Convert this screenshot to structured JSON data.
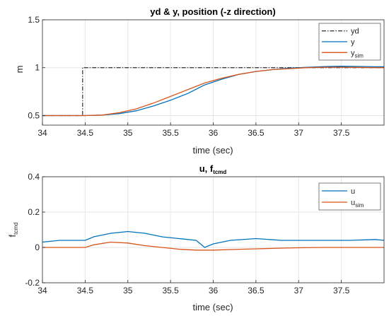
{
  "colors": {
    "yd": "#404040",
    "y": "#0072BD",
    "ysim": "#D95319",
    "u": "#0072BD",
    "usim": "#D95319",
    "grid": "#e6e6e6",
    "axis": "#262626"
  },
  "chart_data": [
    {
      "type": "line",
      "title": "yd & y, position (-z direction)",
      "xlabel": "time (sec)",
      "ylabel": "m",
      "xlim": [
        34,
        38
      ],
      "ylim": [
        0.4,
        1.5
      ],
      "xticks": [
        "34",
        "34.5",
        "35",
        "35.5",
        "36",
        "36.5",
        "37",
        "37.5"
      ],
      "yticks": [
        "0.5",
        "1",
        "1.5"
      ],
      "grid": true,
      "legend_position": "top-right",
      "series": [
        {
          "name": "yd",
          "legend": {
            "base": "yd",
            "sub": ""
          },
          "style": "dash-dot",
          "x": [
            34,
            34.47,
            34.47,
            38
          ],
          "y": [
            0.5,
            0.5,
            1.0,
            1.0
          ]
        },
        {
          "name": "y",
          "legend": {
            "base": "y",
            "sub": ""
          },
          "style": "solid",
          "x": [
            34,
            34.5,
            34.7,
            34.9,
            35.1,
            35.3,
            35.5,
            35.7,
            35.9,
            36.1,
            36.3,
            36.5,
            36.7,
            36.9,
            37.1,
            37.3,
            37.5,
            37.7,
            37.9,
            38
          ],
          "y": [
            0.5,
            0.5,
            0.505,
            0.52,
            0.55,
            0.6,
            0.66,
            0.73,
            0.82,
            0.88,
            0.93,
            0.96,
            0.98,
            0.995,
            1.005,
            1.012,
            1.015,
            1.013,
            1.01,
            1.01
          ]
        },
        {
          "name": "ysim",
          "legend": {
            "base": "y",
            "sub": "sim"
          },
          "style": "solid",
          "x": [
            34,
            34.5,
            34.7,
            34.9,
            35.1,
            35.3,
            35.5,
            35.7,
            35.9,
            36.1,
            36.3,
            36.5,
            36.7,
            36.9,
            37.1,
            37.3,
            37.5,
            37.7,
            37.9,
            38
          ],
          "y": [
            0.5,
            0.5,
            0.505,
            0.53,
            0.57,
            0.63,
            0.7,
            0.77,
            0.84,
            0.89,
            0.93,
            0.96,
            0.98,
            0.99,
            1.0,
            1.005,
            1.005,
            1.003,
            1.0,
            1.0
          ]
        }
      ]
    },
    {
      "type": "line",
      "title_base": "u, f",
      "title_sub": "tcmd",
      "xlabel": "time (sec)",
      "ylabel_base": "f",
      "ylabel_sub": "tcmd",
      "xlim": [
        34,
        38
      ],
      "ylim": [
        -0.2,
        0.4
      ],
      "xticks": [
        "34",
        "34.5",
        "35",
        "35.5",
        "36",
        "36.5",
        "37",
        "37.5"
      ],
      "yticks": [
        "-0.2",
        "0",
        "0.2",
        "0.4"
      ],
      "grid": true,
      "legend_position": "top-right",
      "series": [
        {
          "name": "u",
          "legend": {
            "base": "u",
            "sub": ""
          },
          "style": "solid",
          "x": [
            34,
            34.2,
            34.4,
            34.5,
            34.6,
            34.8,
            35.0,
            35.2,
            35.4,
            35.6,
            35.8,
            35.85,
            35.9,
            36.0,
            36.2,
            36.5,
            36.8,
            37.0,
            37.3,
            37.6,
            37.9,
            38
          ],
          "y": [
            0.03,
            0.04,
            0.04,
            0.04,
            0.06,
            0.08,
            0.09,
            0.08,
            0.06,
            0.05,
            0.04,
            0.02,
            0.0,
            0.02,
            0.04,
            0.05,
            0.04,
            0.04,
            0.04,
            0.04,
            0.045,
            0.04
          ]
        },
        {
          "name": "usim",
          "legend": {
            "base": "u",
            "sub": "sim"
          },
          "style": "solid",
          "x": [
            34,
            34.5,
            34.6,
            34.8,
            35.0,
            35.2,
            35.4,
            35.6,
            35.8,
            36.0,
            36.2,
            36.5,
            36.8,
            37.0,
            37.3,
            37.6,
            38
          ],
          "y": [
            0.0,
            0.0,
            0.015,
            0.03,
            0.025,
            0.01,
            0.0,
            -0.01,
            -0.015,
            -0.015,
            -0.012,
            -0.008,
            -0.004,
            -0.002,
            0.0,
            0.0,
            0.0
          ]
        }
      ]
    }
  ]
}
